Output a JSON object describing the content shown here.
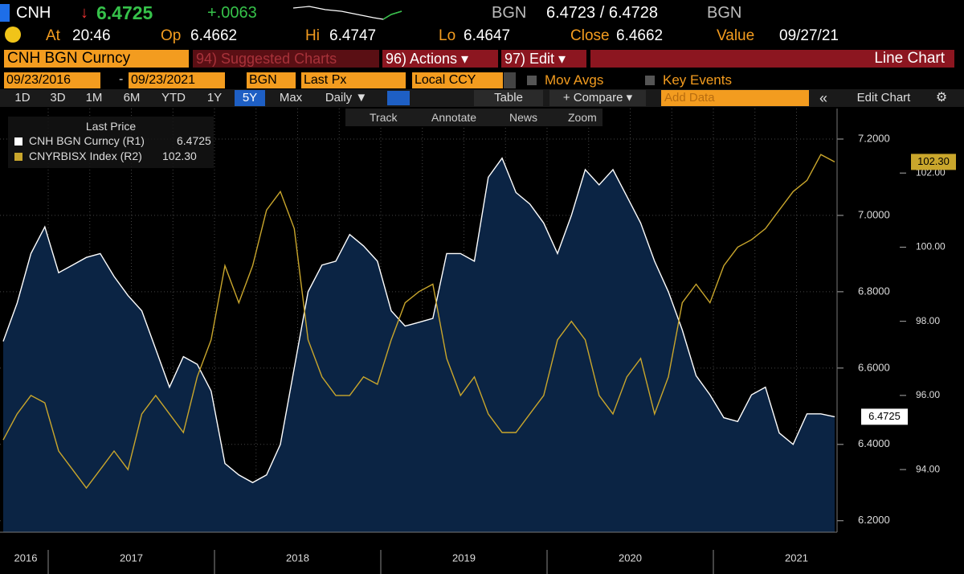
{
  "header": {
    "ticker": "CNH",
    "last": "6.4725",
    "change": "+.0063",
    "source": "BGN",
    "bid_ask": "6.4723 / 6.4728",
    "source2": "BGN",
    "stats": [
      {
        "label": "At",
        "value": "20:46"
      },
      {
        "label": "Op",
        "value": "6.4662"
      },
      {
        "label": "Hi",
        "value": "6.4747"
      },
      {
        "label": "Lo",
        "value": "6.4647"
      },
      {
        "label": "Close",
        "value": "6.4662"
      },
      {
        "label": "Value",
        "value": "09/27/21"
      }
    ]
  },
  "menu": {
    "security": "CNH BGN Curncy",
    "suggested": "94) Suggested Charts",
    "actions": "96) Actions ▾",
    "edit": "97) Edit ▾",
    "chart_type": "Line Chart"
  },
  "controls": {
    "start": "09/23/2016",
    "dash": "-",
    "end": "09/23/2021",
    "source": "BGN",
    "field": "Last Px",
    "currency": "Local CCY",
    "mov_avgs": "Mov Avgs",
    "key_events": "Key Events"
  },
  "ranges": [
    "1D",
    "3D",
    "1M",
    "6M",
    "YTD",
    "1Y",
    "5Y",
    "Max"
  ],
  "toolbar": {
    "period": "Daily ▼",
    "table": "Table",
    "compare": "+ Compare ▾",
    "add_data": "Add Data",
    "edit_chart": "Edit Chart"
  },
  "tools": [
    "Track",
    "Annotate",
    "News",
    "Zoom"
  ],
  "chart_data": {
    "type": "line",
    "legend_title": "Last Price",
    "x_labels": [
      "2016",
      "2017",
      "2018",
      "2019",
      "2020",
      "2021"
    ],
    "series": [
      {
        "name": "CNH BGN Curncy  (R1)",
        "current_label": "6.4725",
        "color": "#ffffff",
        "fill": "#0b2444",
        "axis": "y",
        "values": [
          6.67,
          6.77,
          6.9,
          6.97,
          6.85,
          6.87,
          6.89,
          6.9,
          6.84,
          6.79,
          6.75,
          6.65,
          6.55,
          6.63,
          6.61,
          6.54,
          6.35,
          6.32,
          6.3,
          6.32,
          6.4,
          6.6,
          6.8,
          6.87,
          6.88,
          6.95,
          6.92,
          6.88,
          6.75,
          6.71,
          6.72,
          6.73,
          6.9,
          6.9,
          6.88,
          7.1,
          7.15,
          7.06,
          7.03,
          6.98,
          6.9,
          7.0,
          7.12,
          7.08,
          7.12,
          7.05,
          6.98,
          6.88,
          6.8,
          6.7,
          6.58,
          6.53,
          6.47,
          6.46,
          6.53,
          6.55,
          6.43,
          6.4,
          6.48,
          6.48,
          6.4725
        ]
      },
      {
        "name": "CNYRBISX Index  (R2)",
        "current_label": "102.30",
        "color": "#c9a62c",
        "axis": "y2",
        "values": [
          94.8,
          95.5,
          96.0,
          95.8,
          94.5,
          94.0,
          93.5,
          94.0,
          94.5,
          94.0,
          95.5,
          96.0,
          95.5,
          95.0,
          96.5,
          97.5,
          99.5,
          98.5,
          99.5,
          101.0,
          101.5,
          100.5,
          97.5,
          96.5,
          96.0,
          96.0,
          96.5,
          96.3,
          97.5,
          98.5,
          98.8,
          99.0,
          97.0,
          96.0,
          96.5,
          95.5,
          95.0,
          95.0,
          95.5,
          96.0,
          97.5,
          98.0,
          97.5,
          96.0,
          95.5,
          96.5,
          97.0,
          95.5,
          96.5,
          98.5,
          99.0,
          98.5,
          99.5,
          100.0,
          100.2,
          100.5,
          101.0,
          101.5,
          101.8,
          102.5,
          102.3
        ]
      }
    ],
    "ylim": [
      6.17,
      7.28
    ],
    "yticks": [
      {
        "value": 6.2,
        "label": "6.2000"
      },
      {
        "value": 6.4,
        "label": "6.4000"
      },
      {
        "value": 6.6,
        "label": "6.6000"
      },
      {
        "value": 6.8,
        "label": "6.8000"
      },
      {
        "value": 7.0,
        "label": "7.0000"
      },
      {
        "value": 7.2,
        "label": "7.2000"
      }
    ],
    "y2lim": [
      92.31,
      103.74
    ],
    "y2ticks": [
      {
        "value": 94,
        "label": "94.00"
      },
      {
        "value": 96,
        "label": "96.00"
      },
      {
        "value": 98,
        "label": "98.00"
      },
      {
        "value": 100,
        "label": "100.00"
      },
      {
        "value": 102,
        "label": "102.00"
      }
    ],
    "grid": true
  }
}
